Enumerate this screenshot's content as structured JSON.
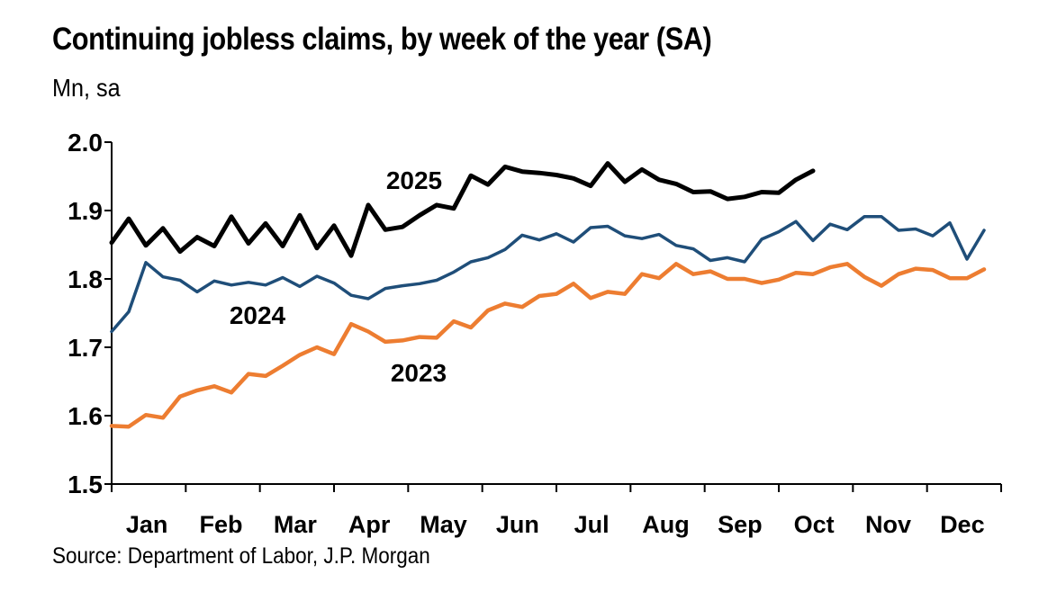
{
  "chart_data": {
    "type": "line",
    "title": "Continuing jobless claims, by week of the year (SA)",
    "ylabel": "Mn, sa",
    "xlabel": "",
    "source": "Source: Department of Labor, J.P. Morgan",
    "ylim": [
      1.5,
      2.0
    ],
    "yticks": [
      "1.5",
      "1.6",
      "1.7",
      "1.8",
      "1.9",
      "2.0"
    ],
    "ytick_values": [
      1.5,
      1.6,
      1.7,
      1.8,
      1.9,
      2.0
    ],
    "months": [
      "Jan",
      "Feb",
      "Mar",
      "Apr",
      "May",
      "Jun",
      "Jul",
      "Aug",
      "Sep",
      "Oct",
      "Nov",
      "Dec"
    ],
    "xlim": [
      1,
      53
    ],
    "grid": false,
    "series": [
      {
        "name": "2023",
        "label": "2023",
        "color": "#ED7D31",
        "values": [
          1.585,
          1.584,
          1.601,
          1.597,
          1.628,
          1.637,
          1.643,
          1.634,
          1.661,
          1.658,
          1.673,
          1.689,
          1.7,
          1.69,
          1.734,
          1.723,
          1.708,
          1.71,
          1.715,
          1.714,
          1.738,
          1.729,
          1.754,
          1.764,
          1.759,
          1.775,
          1.778,
          1.793,
          1.772,
          1.781,
          1.778,
          1.807,
          1.801,
          1.822,
          1.807,
          1.811,
          1.8,
          1.8,
          1.794,
          1.799,
          1.809,
          1.807,
          1.817,
          1.822,
          1.803,
          1.79,
          1.807,
          1.815,
          1.813,
          1.801,
          1.801,
          1.814
        ]
      },
      {
        "name": "2024",
        "label": "2024",
        "color": "#1F4E79",
        "values": [
          1.723,
          1.752,
          1.824,
          1.803,
          1.798,
          1.781,
          1.797,
          1.791,
          1.795,
          1.791,
          1.802,
          1.789,
          1.804,
          1.794,
          1.776,
          1.771,
          1.786,
          1.79,
          1.793,
          1.798,
          1.81,
          1.825,
          1.831,
          1.843,
          1.864,
          1.857,
          1.866,
          1.854,
          1.875,
          1.877,
          1.863,
          1.859,
          1.865,
          1.849,
          1.844,
          1.827,
          1.831,
          1.825,
          1.858,
          1.869,
          1.884,
          1.856,
          1.88,
          1.872,
          1.891,
          1.891,
          1.871,
          1.873,
          1.863,
          1.882,
          1.829,
          1.871
        ]
      },
      {
        "name": "2025",
        "label": "2025",
        "color": "#000000",
        "values": [
          1.853,
          1.888,
          1.849,
          1.874,
          1.84,
          1.861,
          1.848,
          1.891,
          1.852,
          1.881,
          1.848,
          1.893,
          1.845,
          1.878,
          1.834,
          1.908,
          1.872,
          1.876,
          1.893,
          1.908,
          1.903,
          1.951,
          1.938,
          1.964,
          1.957,
          1.955,
          1.952,
          1.947,
          1.936,
          1.969,
          1.942,
          1.96,
          1.945,
          1.939,
          1.927,
          1.928,
          1.917,
          1.92,
          1.927,
          1.926,
          1.945,
          1.958
        ]
      }
    ]
  }
}
